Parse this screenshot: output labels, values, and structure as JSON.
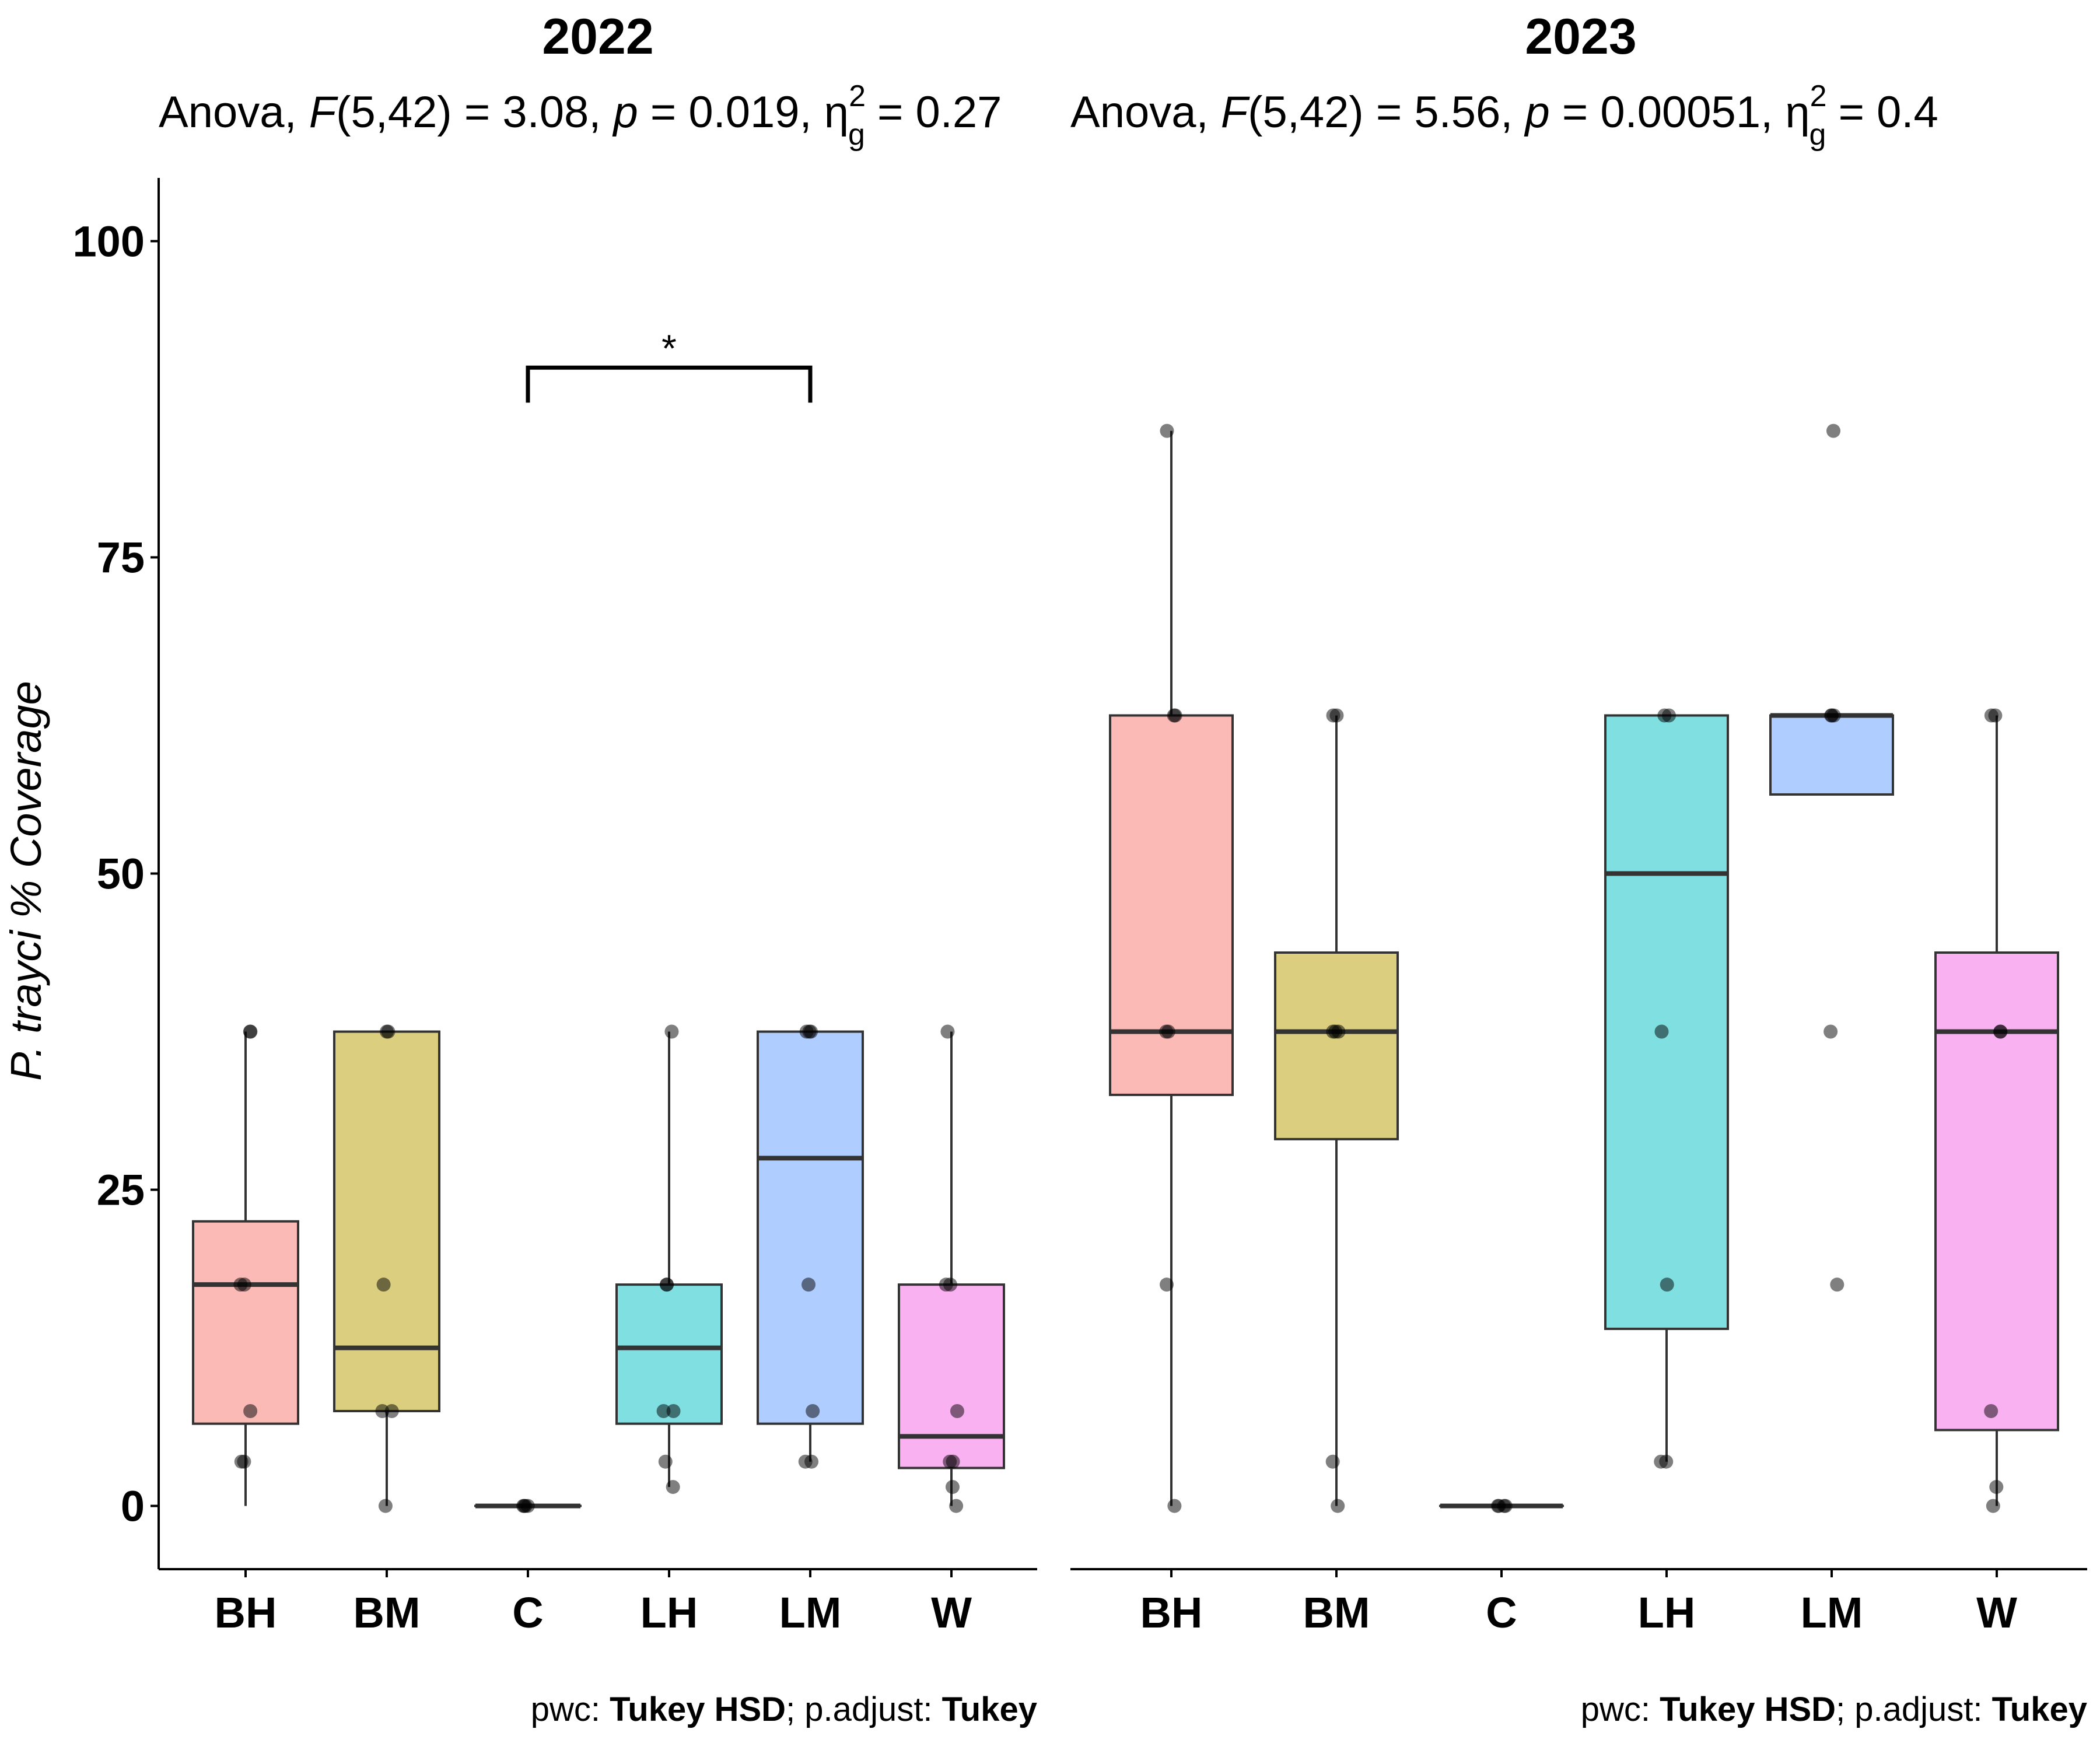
{
  "chart_data": {
    "type": "box",
    "ylabel": "P. trayci % Coverage",
    "ylim": [
      -5,
      105
    ],
    "yticks": [
      0,
      25,
      50,
      75,
      100
    ],
    "categories": [
      "BH",
      "BM",
      "C",
      "LH",
      "LM",
      "W"
    ],
    "colors": {
      "BH": "#F8766D",
      "BM": "#B79F00",
      "C": "#00BA38",
      "LH": "#00BFC4",
      "LM": "#619CFF",
      "W": "#F564E3"
    },
    "panels": [
      {
        "title": "2022",
        "anova": {
          "prefix": "Anova, ",
          "F": "F",
          "df": "(5,42) = 3.08, ",
          "p": "p",
          "pval": " = 0.019, ",
          "eta": "η",
          "sub": "g",
          "sup": "2",
          "eta_val": " = 0.27"
        },
        "caption": {
          "a": "pwc: ",
          "b": "Tukey HSD",
          "c": "; p.adjust: ",
          "d": "Tukey"
        },
        "boxes": [
          {
            "group": "BH",
            "lower": 0.0,
            "q1": 6.5,
            "median": 17.5,
            "q3": 22.5,
            "upper": 37.5
          },
          {
            "group": "BM",
            "lower": 0.0,
            "q1": 7.5,
            "median": 12.5,
            "q3": 37.5,
            "upper": 37.5
          },
          {
            "group": "C",
            "lower": 0.0,
            "q1": 0.0,
            "median": 0.0,
            "q3": 0.0,
            "upper": 0.0
          },
          {
            "group": "LH",
            "lower": 1.5,
            "q1": 6.5,
            "median": 12.5,
            "q3": 17.5,
            "upper": 37.5
          },
          {
            "group": "LM",
            "lower": 3.5,
            "q1": 6.5,
            "median": 27.5,
            "q3": 37.5,
            "upper": 37.5
          },
          {
            "group": "W",
            "lower": 0.0,
            "q1": 3.0,
            "median": 5.5,
            "q3": 17.5,
            "upper": 37.5
          }
        ],
        "points": {
          "BH": [
            37.5,
            37.5,
            17.5,
            17.5,
            7.5,
            3.5,
            3.5
          ],
          "BM": [
            37.5,
            37.5,
            17.5,
            7.5,
            7.5,
            0.0
          ],
          "C": [
            0.0,
            0.0,
            0.0,
            0.0
          ],
          "LH": [
            37.5,
            17.5,
            17.5,
            7.5,
            7.5,
            3.5,
            1.5
          ],
          "LM": [
            37.5,
            37.5,
            37.5,
            17.5,
            7.5,
            3.5,
            3.5
          ],
          "W": [
            37.5,
            17.5,
            17.5,
            7.5,
            3.5,
            3.5,
            1.5,
            0.0
          ]
        },
        "significance": [
          {
            "from": "C",
            "to": "LM",
            "y": 90,
            "label": "*"
          }
        ]
      },
      {
        "title": "2023",
        "anova": {
          "prefix": "Anova, ",
          "F": "F",
          "df": "(5,42) = 5.56, ",
          "p": "p",
          "pval": " = 0.00051, ",
          "eta": "η",
          "sub": "g",
          "sup": "2",
          "eta_val": " = 0.4"
        },
        "caption": {
          "a": "pwc: ",
          "b": "Tukey HSD",
          "c": "; p.adjust: ",
          "d": "Tukey"
        },
        "boxes": [
          {
            "group": "BH",
            "lower": 0.0,
            "q1": 32.5,
            "median": 37.5,
            "q3": 62.5,
            "upper": 85.0
          },
          {
            "group": "BM",
            "lower": 0.0,
            "q1": 29.0,
            "median": 37.5,
            "q3": 43.75,
            "upper": 62.5
          },
          {
            "group": "C",
            "lower": 0.0,
            "q1": 0.0,
            "median": 0.0,
            "q3": 0.0,
            "upper": 0.0
          },
          {
            "group": "LH",
            "lower": 3.5,
            "q1": 14.0,
            "median": 50.0,
            "q3": 62.5,
            "upper": 62.5
          },
          {
            "group": "LM",
            "lower": 56.25,
            "q1": 56.25,
            "median": 62.5,
            "q3": 62.5,
            "upper": 62.5
          },
          {
            "group": "W",
            "lower": 0.0,
            "q1": 6.0,
            "median": 37.5,
            "q3": 43.75,
            "upper": 62.5
          }
        ],
        "points": {
          "BH": [
            85.0,
            62.5,
            62.5,
            37.5,
            37.5,
            17.5,
            0.0
          ],
          "BM": [
            62.5,
            62.5,
            37.5,
            37.5,
            37.5,
            3.5,
            0.0
          ],
          "C": [
            0.0,
            0.0,
            0.0,
            0.0
          ],
          "LH": [
            62.5,
            62.5,
            37.5,
            17.5,
            3.5,
            3.5
          ],
          "LM": [
            85.0,
            62.5,
            62.5,
            62.5,
            37.5,
            17.5
          ],
          "W": [
            62.5,
            62.5,
            37.5,
            37.5,
            7.5,
            1.5,
            0.0
          ]
        },
        "significance": []
      }
    ]
  }
}
